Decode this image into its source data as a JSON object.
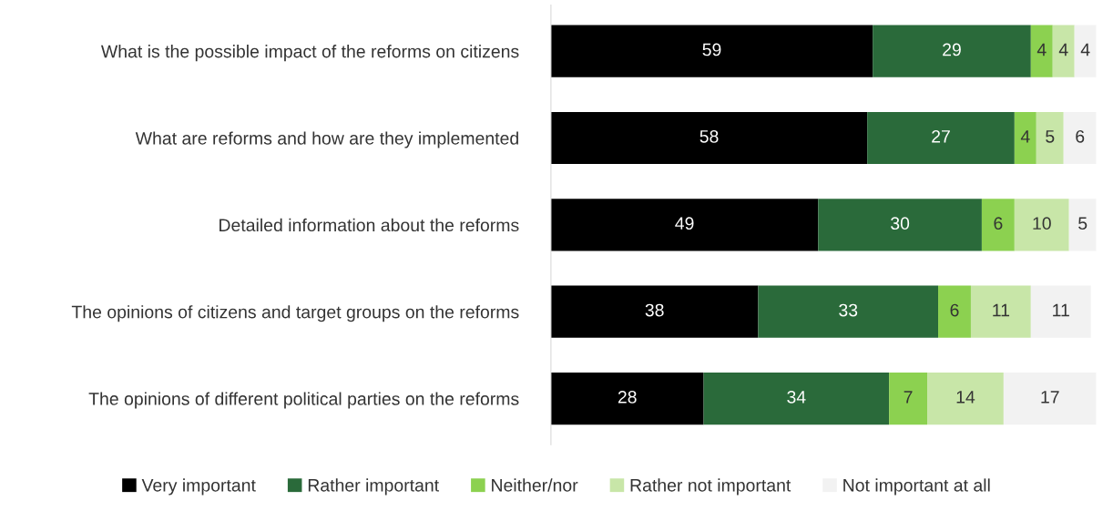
{
  "chart_data": {
    "type": "bar",
    "orientation": "horizontal",
    "stacked": true,
    "data_labels": true,
    "categories": [
      "What is the possible impact of the reforms on citizens",
      "What are reforms and how are they implemented",
      "Detailed information about the reforms",
      "The opinions of citizens and target groups on the reforms",
      "The opinions of different political parties on the reforms"
    ],
    "series": [
      {
        "name": "Very important",
        "color": "#000000",
        "values": [
          59,
          58,
          49,
          38,
          28
        ]
      },
      {
        "name": "Rather important",
        "color": "#2a6a3a",
        "values": [
          29,
          27,
          30,
          33,
          34
        ]
      },
      {
        "name": "Neither/nor",
        "color": "#8cd150",
        "values": [
          4,
          4,
          6,
          6,
          7
        ]
      },
      {
        "name": "Rather not important",
        "color": "#c8e6a8",
        "values": [
          4,
          5,
          10,
          11,
          14
        ]
      },
      {
        "name": "Not important at all",
        "color": "#f2f2f2",
        "values": [
          4,
          6,
          5,
          11,
          17
        ]
      }
    ],
    "xlim": [
      0,
      100
    ],
    "tick_labels": "y",
    "grid": false,
    "legend": "bottom"
  }
}
